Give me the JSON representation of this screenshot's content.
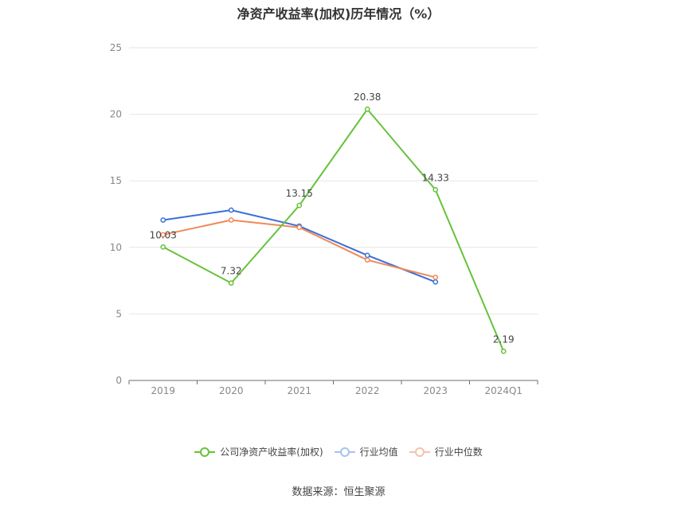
{
  "chart_data": {
    "type": "line",
    "title": "净资产收益率(加权)历年情况（%）",
    "categories": [
      "2019",
      "2020",
      "2021",
      "2022",
      "2023",
      "2024Q1"
    ],
    "ylim": [
      0,
      25
    ],
    "yticks": [
      0,
      5,
      10,
      15,
      20,
      25
    ],
    "grid": true,
    "legend_position": "bottom",
    "series": [
      {
        "name": "公司净资产收益率(加权)",
        "color": "#66c23a",
        "values": [
          10.03,
          7.32,
          13.15,
          20.38,
          14.33,
          2.19
        ],
        "labels": [
          "10.03",
          "7.32",
          "13.15",
          "20.38",
          "14.33",
          "2.19"
        ]
      },
      {
        "name": "行业均值",
        "color": "#3a6fd8",
        "values": [
          12.05,
          12.8,
          11.6,
          9.4,
          7.4,
          null
        ]
      },
      {
        "name": "行业中位数",
        "color": "#ee8a5a",
        "values": [
          10.95,
          12.05,
          11.5,
          9.05,
          7.75,
          null
        ]
      }
    ]
  },
  "source": "数据来源：恒生聚源"
}
